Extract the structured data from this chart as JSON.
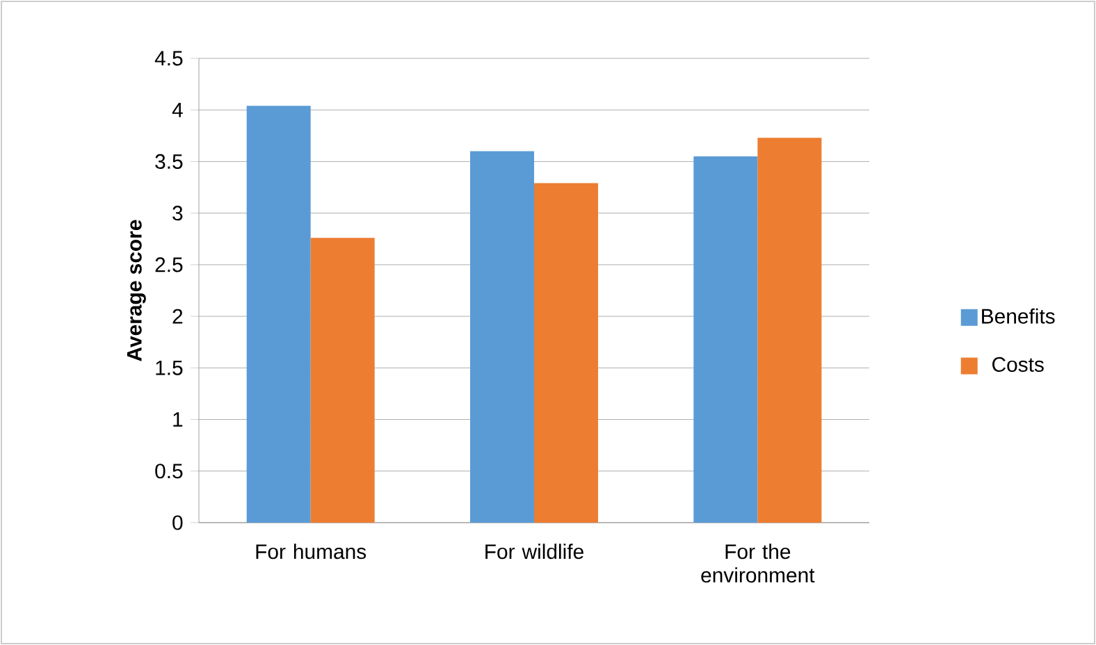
{
  "chart_data": {
    "type": "bar",
    "ylabel": "Average score",
    "categories": [
      "For humans",
      "For wildlife",
      "For the environment"
    ],
    "series": [
      {
        "name": "Benefits",
        "color": "#5b9bd5",
        "values": [
          4.04,
          3.6,
          3.55
        ]
      },
      {
        "name": "Costs",
        "color": "#ed7d31",
        "values": [
          2.76,
          3.29,
          3.73
        ]
      }
    ],
    "ylim": [
      0,
      4.5
    ],
    "yticks": [
      0,
      0.5,
      1,
      1.5,
      2,
      2.5,
      3,
      3.5,
      4,
      4.5
    ],
    "grid": "y",
    "legend": "right"
  }
}
